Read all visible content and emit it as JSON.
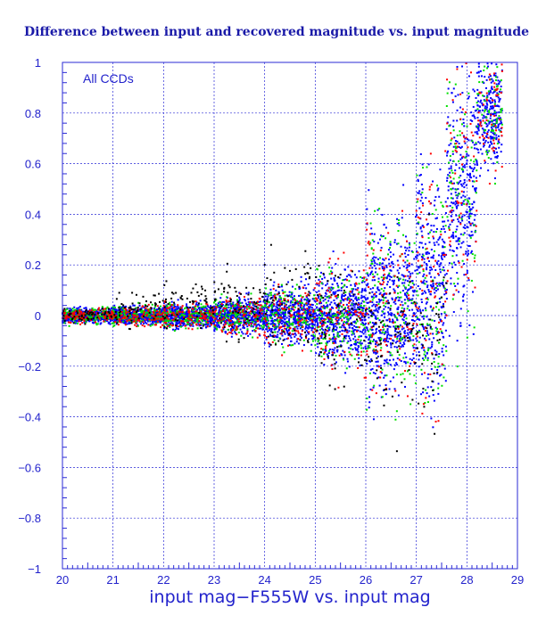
{
  "chart_data": {
    "type": "scatter",
    "title": "Difference between input and recovered magnitude vs. input magnitude",
    "xlabel": "input mag−F555W vs. input mag",
    "ylabel": "",
    "annotation": "All CCDs",
    "xlim": [
      20,
      29
    ],
    "ylim": [
      -1,
      1
    ],
    "xticks": [
      "20",
      "21",
      "22",
      "23",
      "24",
      "25",
      "26",
      "27",
      "28",
      "29"
    ],
    "yticks": [
      "−1",
      "−0.8",
      "−0.6",
      "−0.4",
      "−0.2",
      "0",
      "0.2",
      "0.4",
      "0.6",
      "0.8",
      "1"
    ],
    "grid": true,
    "grid_color": "#2a2ad6",
    "axis_color": "#2a2ad6",
    "title_color": "#1a1aa8",
    "series": [
      {
        "color": "#0000ff",
        "bands": [
          {
            "x_min": 20.0,
            "x_max": 21.0,
            "y_center": 0.0,
            "half_width": 0.025
          },
          {
            "x_min": 21.0,
            "x_max": 22.0,
            "y_center": 0.0,
            "half_width": 0.03
          },
          {
            "x_min": 22.0,
            "x_max": 23.0,
            "y_center": 0.0,
            "half_width": 0.04
          },
          {
            "x_min": 23.0,
            "x_max": 24.0,
            "y_center": 0.0,
            "half_width": 0.06
          },
          {
            "x_min": 24.0,
            "x_max": 25.0,
            "y_center": 0.0,
            "half_width": 0.1
          },
          {
            "x_min": 25.0,
            "x_max": 26.0,
            "y_center": 0.0,
            "half_width": 0.16
          },
          {
            "x_min": 26.0,
            "x_max": 27.0,
            "y_center": 0.03,
            "half_width": 0.3
          },
          {
            "x_min": 27.0,
            "x_max": 27.6,
            "y_center": 0.12,
            "half_width": 0.42
          },
          {
            "x_min": 27.6,
            "x_max": 28.2,
            "y_center": 0.5,
            "half_width": 0.45
          },
          {
            "x_min": 28.2,
            "x_max": 28.7,
            "y_center": 0.8,
            "half_width": 0.2
          }
        ]
      },
      {
        "color": "#00e000",
        "bands": [
          {
            "x_min": 20.0,
            "x_max": 21.0,
            "y_center": 0.0,
            "half_width": 0.03
          },
          {
            "x_min": 21.0,
            "x_max": 22.0,
            "y_center": 0.0,
            "half_width": 0.035
          },
          {
            "x_min": 22.0,
            "x_max": 23.0,
            "y_center": 0.0,
            "half_width": 0.045
          },
          {
            "x_min": 23.0,
            "x_max": 24.0,
            "y_center": 0.0,
            "half_width": 0.07
          },
          {
            "x_min": 24.0,
            "x_max": 25.0,
            "y_center": 0.0,
            "half_width": 0.11
          },
          {
            "x_min": 25.0,
            "x_max": 26.0,
            "y_center": 0.0,
            "half_width": 0.18
          },
          {
            "x_min": 26.0,
            "x_max": 27.0,
            "y_center": 0.03,
            "half_width": 0.32
          },
          {
            "x_min": 27.0,
            "x_max": 27.6,
            "y_center": 0.12,
            "half_width": 0.44
          },
          {
            "x_min": 27.6,
            "x_max": 28.2,
            "y_center": 0.5,
            "half_width": 0.46
          },
          {
            "x_min": 28.2,
            "x_max": 28.7,
            "y_center": 0.8,
            "half_width": 0.2
          }
        ]
      },
      {
        "color": "#ff0000",
        "bands": [
          {
            "x_min": 20.0,
            "x_max": 21.0,
            "y_center": 0.0,
            "half_width": 0.03
          },
          {
            "x_min": 21.0,
            "x_max": 22.0,
            "y_center": 0.0,
            "half_width": 0.04
          },
          {
            "x_min": 22.0,
            "x_max": 23.0,
            "y_center": 0.0,
            "half_width": 0.05
          },
          {
            "x_min": 23.0,
            "x_max": 24.0,
            "y_center": 0.0,
            "half_width": 0.08
          },
          {
            "x_min": 24.0,
            "x_max": 25.0,
            "y_center": 0.0,
            "half_width": 0.12
          },
          {
            "x_min": 25.0,
            "x_max": 26.0,
            "y_center": 0.0,
            "half_width": 0.2
          },
          {
            "x_min": 26.0,
            "x_max": 27.0,
            "y_center": 0.03,
            "half_width": 0.34
          },
          {
            "x_min": 27.0,
            "x_max": 27.6,
            "y_center": 0.12,
            "half_width": 0.45
          },
          {
            "x_min": 27.6,
            "x_max": 28.2,
            "y_center": 0.5,
            "half_width": 0.47
          },
          {
            "x_min": 28.2,
            "x_max": 28.7,
            "y_center": 0.8,
            "half_width": 0.2
          }
        ]
      },
      {
        "color": "#000000",
        "bands": [
          {
            "x_min": 20.0,
            "x_max": 21.0,
            "y_center": 0.0,
            "half_width": 0.03
          },
          {
            "x_min": 21.0,
            "x_max": 22.0,
            "y_center": 0.02,
            "half_width": 0.06
          },
          {
            "x_min": 22.0,
            "x_max": 23.0,
            "y_center": 0.04,
            "half_width": 0.09
          },
          {
            "x_min": 23.0,
            "x_max": 24.0,
            "y_center": 0.05,
            "half_width": 0.13
          },
          {
            "x_min": 24.0,
            "x_max": 25.0,
            "y_center": 0.04,
            "half_width": 0.17
          },
          {
            "x_min": 25.0,
            "x_max": 26.0,
            "y_center": 0.0,
            "half_width": 0.24
          },
          {
            "x_min": 26.0,
            "x_max": 27.0,
            "y_center": -0.1,
            "half_width": 0.3
          },
          {
            "x_min": 27.0,
            "x_max": 27.6,
            "y_center": -0.1,
            "half_width": 0.35
          }
        ]
      }
    ]
  }
}
